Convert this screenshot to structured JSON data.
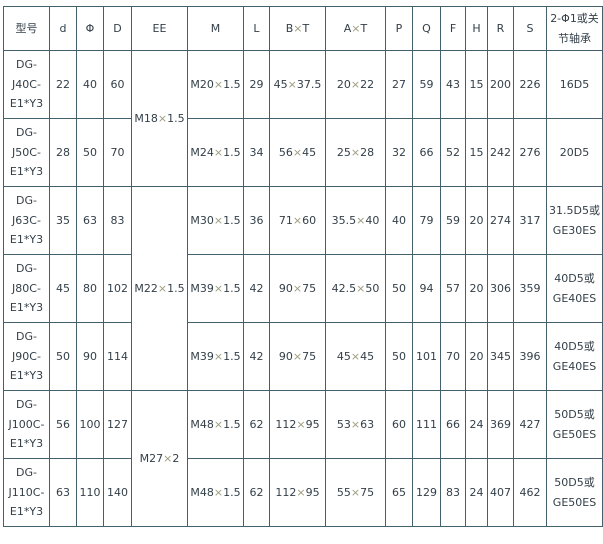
{
  "table": {
    "headers": [
      "型号",
      "d",
      "Φ",
      "D",
      "EE",
      "M",
      "L",
      "B×T",
      "A×T",
      "P",
      "Q",
      "F",
      "H",
      "R",
      "S",
      "2-Φ1或关节轴承"
    ],
    "ee_merged_cells": [
      "M18×1.5",
      "M22×1.5",
      "M27×2"
    ],
    "rows": [
      [
        "DG-J40C-E1*Y3",
        "22",
        "40",
        "60",
        "M20×1.5",
        "29",
        "45×37.5",
        "20×22",
        "27",
        "59",
        "43",
        "15",
        "200",
        "226",
        "16D5"
      ],
      [
        "DG-J50C-E1*Y3",
        "28",
        "50",
        "70",
        "M24×1.5",
        "34",
        "56×45",
        "25×28",
        "32",
        "66",
        "52",
        "15",
        "242",
        "276",
        "20D5"
      ],
      [
        "DG-J63C-E1*Y3",
        "35",
        "63",
        "83",
        "M30×1.5",
        "36",
        "71×60",
        "35.5×40",
        "40",
        "79",
        "59",
        "20",
        "274",
        "317",
        "31.5D5或GE30ES"
      ],
      [
        "DG-J80C-E1*Y3",
        "45",
        "80",
        "102",
        "M39×1.5",
        "42",
        "90×75",
        "42.5×50",
        "50",
        "94",
        "57",
        "20",
        "306",
        "359",
        "40D5或GE40ES"
      ],
      [
        "DG-J90C-E1*Y3",
        "50",
        "90",
        "114",
        "M39×1.5",
        "42",
        "90×75",
        "45×45",
        "50",
        "101",
        "70",
        "20",
        "345",
        "396",
        "40D5或GE40ES"
      ],
      [
        "DG-J100C-E1*Y3",
        "56",
        "100",
        "127",
        "M48×1.5",
        "62",
        "112×95",
        "53×63",
        "60",
        "111",
        "66",
        "24",
        "369",
        "427",
        "50D5或GE50ES"
      ],
      [
        "DG-J110C-E1*Y3",
        "63",
        "110",
        "140",
        "M48×1.5",
        "62",
        "112×95",
        "55×75",
        "65",
        "129",
        "83",
        "24",
        "407",
        "462",
        "50D5或GE50ES"
      ]
    ]
  },
  "colors": {
    "border": "#44606d",
    "text": "#333f48",
    "times_symbol": "#9b9b7d",
    "background": "#ffffff"
  }
}
